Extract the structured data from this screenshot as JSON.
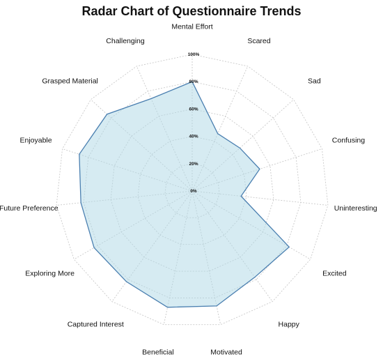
{
  "chart_data": {
    "type": "radar",
    "title": "Radar Chart of Questionnaire Trends",
    "categories": [
      "Mental Effort",
      "Scared",
      "Sad",
      "Confusing",
      "Uninteresting",
      "Excited",
      "Happy",
      "Motivated",
      "Beneficial",
      "Captured Interest",
      "Exploring More",
      "Future Preference",
      "Enjoyable",
      "Grasped Material",
      "Challenging"
    ],
    "r_ticks": [
      "0%",
      "20%",
      "40%",
      "60%",
      "80%",
      "100%"
    ],
    "r_range": [
      0,
      100
    ],
    "grid": true,
    "series": [
      {
        "values": [
          80,
          46,
          47,
          52,
          36,
          82,
          78,
          86,
          87,
          82,
          83,
          82,
          87,
          84,
          74
        ],
        "fill": "#add8e6",
        "fill_opacity": 0.5,
        "stroke": "#4a7fb0"
      }
    ]
  }
}
